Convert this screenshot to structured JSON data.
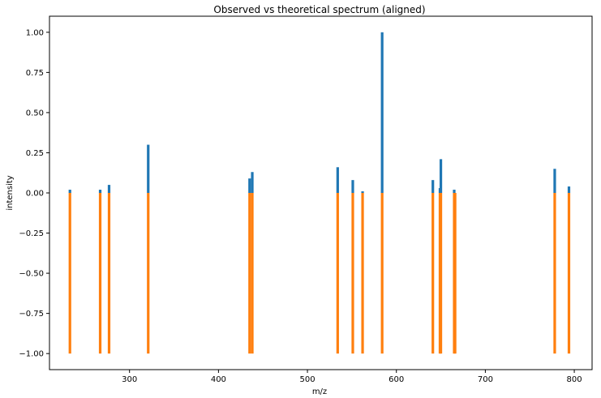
{
  "chart_data": {
    "type": "bar",
    "title": "Observed vs theoretical spectrum (aligned)",
    "xlabel": "m/z",
    "ylabel": "intensity",
    "xlim": [
      210,
      820
    ],
    "ylim": [
      -1.1,
      1.1
    ],
    "xticks": [
      300,
      400,
      500,
      600,
      700,
      800
    ],
    "yticks": [
      -1.0,
      -0.75,
      -0.5,
      -0.25,
      0.0,
      0.25,
      0.5,
      0.75,
      1.0
    ],
    "ytick_labels": [
      "−1.00",
      "−0.75",
      "−0.50",
      "−0.25",
      "0.00",
      "0.25",
      "0.50",
      "0.75",
      "1.00"
    ],
    "grid": false,
    "series": [
      {
        "color": "#1f77b4",
        "x": [
          233,
          267,
          277,
          321,
          435,
          438,
          534,
          551,
          562,
          584,
          641,
          649,
          650,
          665,
          778,
          794
        ],
        "values": [
          0.02,
          0.02,
          0.05,
          0.3,
          0.09,
          0.13,
          0.16,
          0.08,
          0.01,
          1.0,
          0.08,
          0.03,
          0.21,
          0.02,
          0.15,
          0.04
        ]
      },
      {
        "color": "#ff7f0e",
        "x": [
          233,
          267,
          277,
          321,
          435,
          438,
          534,
          551,
          562,
          584,
          641,
          649,
          650,
          665,
          666,
          778,
          794
        ],
        "values": [
          -1,
          -1,
          -1,
          -1,
          -1,
          -1,
          -1,
          -1,
          -1,
          -1,
          -1,
          -1,
          -1,
          -1,
          -1,
          -1,
          -1
        ]
      }
    ]
  }
}
